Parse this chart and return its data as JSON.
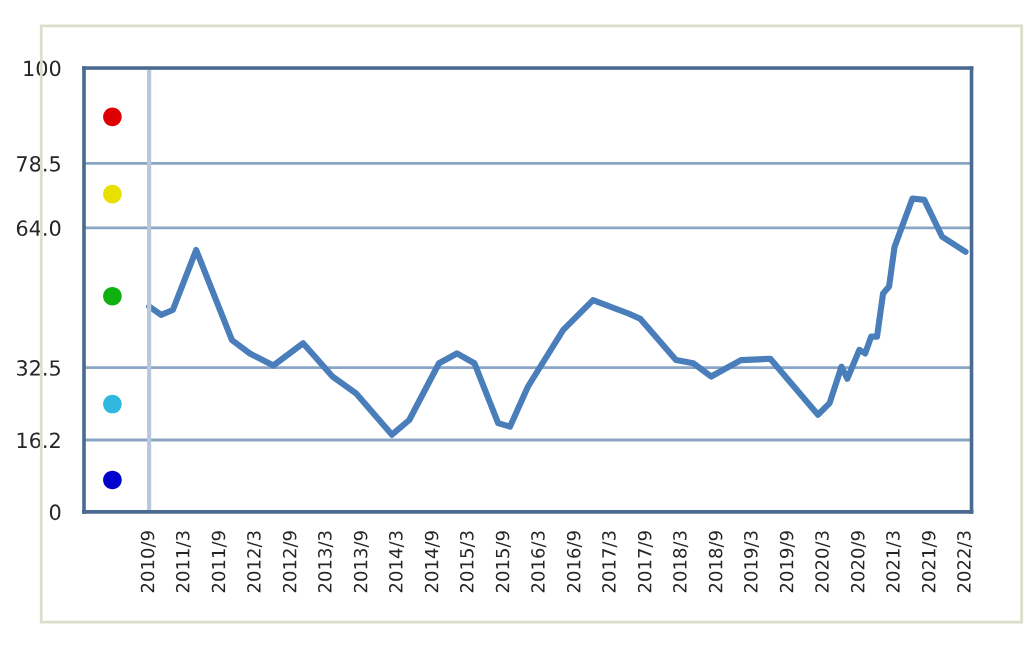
{
  "chart_data": {
    "type": "line",
    "x": [
      "2010-09",
      "2010-11",
      "2011-01",
      "2011-05",
      "2011-11",
      "2012-02",
      "2012-06",
      "2012-11",
      "2013-04",
      "2013-08",
      "2014-02",
      "2014-05",
      "2014-10",
      "2015-01",
      "2015-04",
      "2015-08",
      "2015-10",
      "2016-01",
      "2016-07",
      "2016-12",
      "2017-06",
      "2017-08",
      "2018-02",
      "2018-05",
      "2018-08",
      "2019-01",
      "2019-06",
      "2020-02",
      "2020-04",
      "2020-06",
      "2020-07",
      "2020-09",
      "2020-10",
      "2020-11",
      "2020-12",
      "2021-01",
      "2021-02",
      "2021-03",
      "2021-06",
      "2021-08",
      "2021-11",
      "2022-03"
    ],
    "series": [
      {
        "color": "#4a7ebb",
        "values": [
          46.3,
          44.4,
          45.5,
          59.0,
          38.7,
          35.7,
          33.0,
          38.0,
          30.5,
          26.7,
          17.4,
          20.7,
          33.5,
          35.7,
          33.5,
          20.0,
          19.2,
          28.2,
          41.0,
          47.7,
          44.7,
          43.5,
          34.2,
          33.5,
          30.5,
          34.2,
          34.5,
          21.9,
          24.5,
          32.7,
          30.0,
          36.5,
          35.7,
          39.5,
          39.5,
          49.2,
          50.8,
          59.7,
          70.6,
          70.3,
          62.0,
          58.6
        ]
      }
    ],
    "xlim": [
      "2009-10",
      "2022-04"
    ],
    "xticks": [
      {
        "value": "2010-09",
        "label": "2010/9"
      },
      {
        "value": "2011-03",
        "label": "2011/3"
      },
      {
        "value": "2011-09",
        "label": "2011/9"
      },
      {
        "value": "2012-03",
        "label": "2012/3"
      },
      {
        "value": "2012-09",
        "label": "2012/9"
      },
      {
        "value": "2013-03",
        "label": "2013/3"
      },
      {
        "value": "2013-09",
        "label": "2013/9"
      },
      {
        "value": "2014-03",
        "label": "2014/3"
      },
      {
        "value": "2014-09",
        "label": "2014/9"
      },
      {
        "value": "2015-03",
        "label": "2015/3"
      },
      {
        "value": "2015-09",
        "label": "2015/9"
      },
      {
        "value": "2016-03",
        "label": "2016/3"
      },
      {
        "value": "2016-09",
        "label": "2016/9"
      },
      {
        "value": "2017-03",
        "label": "2017/3"
      },
      {
        "value": "2017-09",
        "label": "2017/9"
      },
      {
        "value": "2018-03",
        "label": "2018/3"
      },
      {
        "value": "2018-09",
        "label": "2018/9"
      },
      {
        "value": "2019-03",
        "label": "2019/3"
      },
      {
        "value": "2019-09",
        "label": "2019/9"
      },
      {
        "value": "2020-03",
        "label": "2020/3"
      },
      {
        "value": "2020-09",
        "label": "2020/9"
      },
      {
        "value": "2021-03",
        "label": "2021/3"
      },
      {
        "value": "2021-09",
        "label": "2021/9"
      },
      {
        "value": "2022-03",
        "label": "2022/3"
      }
    ],
    "ylim": [
      0,
      100
    ],
    "yticks": [
      0,
      16.2,
      32.5,
      {
        "value": 64,
        "label": "64.0"
      },
      78.5,
      100
    ],
    "ref_lines": [
      {
        "axis": "x",
        "value": "2010-09",
        "label": null,
        "color": "#b8c8da"
      }
    ],
    "grid": "y",
    "legend": false,
    "marker": "none",
    "line_style": "solid"
  }
}
